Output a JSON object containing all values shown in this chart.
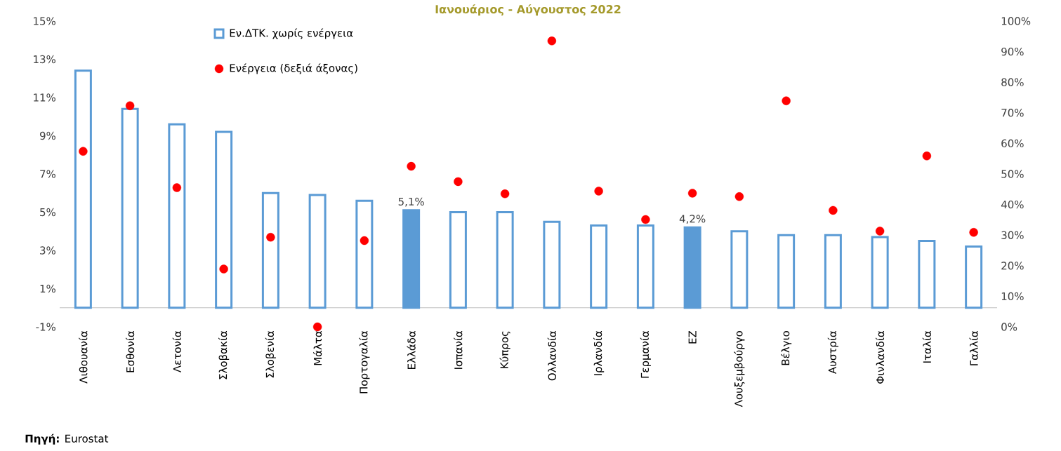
{
  "chart_data": {
    "type": "bar",
    "title": "Ιανουάριος - Αύγουστος 2022",
    "categories": [
      "Λιθουανία",
      "Εσθονία",
      "Λετονία",
      "Σλοβακία",
      "Σλοβενία",
      "Μάλτα",
      "Πορτογαλία",
      "Ελλάδα",
      "Ισπανία",
      "Κύπρος",
      "Ολλανδία",
      "Ιρλανδία",
      "Γερμανία",
      "ΕΖ",
      "Λουξεμβούργο",
      "Βέλγιο",
      "Αυστρία",
      "Φινλανδία",
      "Ιταλία",
      "Γαλλία"
    ],
    "series": [
      {
        "name": "Εν.ΔΤΚ. χωρίς ενέργεια",
        "color": "#5b9bd5",
        "values": [
          12.4,
          10.4,
          9.6,
          9.2,
          6.0,
          5.9,
          5.6,
          5.1,
          5.0,
          5.0,
          4.5,
          4.3,
          4.3,
          4.2,
          4.0,
          3.8,
          3.8,
          3.7,
          3.5,
          3.2
        ],
        "value_labels": [
          null,
          null,
          null,
          null,
          null,
          null,
          null,
          "5,1%",
          null,
          null,
          null,
          null,
          null,
          "4,2%",
          null,
          null,
          null,
          null,
          null,
          null
        ]
      },
      {
        "name": "Ενέργεια (δεξιά άξονας)",
        "type": "scatter",
        "axis": "y2",
        "color": "#ff0000",
        "values": [
          57.4,
          72.3,
          45.5,
          18.9,
          29.3,
          0,
          28.2,
          52.5,
          47.5,
          43.5,
          93.5,
          44.4,
          35.1,
          43.7,
          42.6,
          73.9,
          38.1,
          31.3,
          55.9,
          30.9
        ]
      }
    ],
    "ylim": [
      -1,
      15
    ],
    "yticks": [
      {
        "value": -1,
        "label": "-1%"
      },
      {
        "value": 1,
        "label": "1%"
      },
      {
        "value": 3,
        "label": "3%"
      },
      {
        "value": 5,
        "label": "5%"
      },
      {
        "value": 7,
        "label": "7%"
      },
      {
        "value": 9,
        "label": "9%"
      },
      {
        "value": 11,
        "label": "11%"
      },
      {
        "value": 13,
        "label": "13%"
      },
      {
        "value": 15,
        "label": "15%"
      }
    ],
    "y2lim": [
      0,
      100
    ],
    "y2ticks": [
      {
        "value": 0,
        "label": "0%"
      },
      {
        "value": 10,
        "label": "10%"
      },
      {
        "value": 20,
        "label": "20%"
      },
      {
        "value": 30,
        "label": "30%"
      },
      {
        "value": 40,
        "label": "40%"
      },
      {
        "value": 50,
        "label": "50%"
      },
      {
        "value": 60,
        "label": "60%"
      },
      {
        "value": 70,
        "label": "70%"
      },
      {
        "value": 80,
        "label": "80%"
      },
      {
        "value": 90,
        "label": "90%"
      },
      {
        "value": 100,
        "label": "100%"
      }
    ],
    "legend": "top left",
    "marker": "circle",
    "annotations": [
      "**Πηγή:** Eurostat"
    ]
  }
}
